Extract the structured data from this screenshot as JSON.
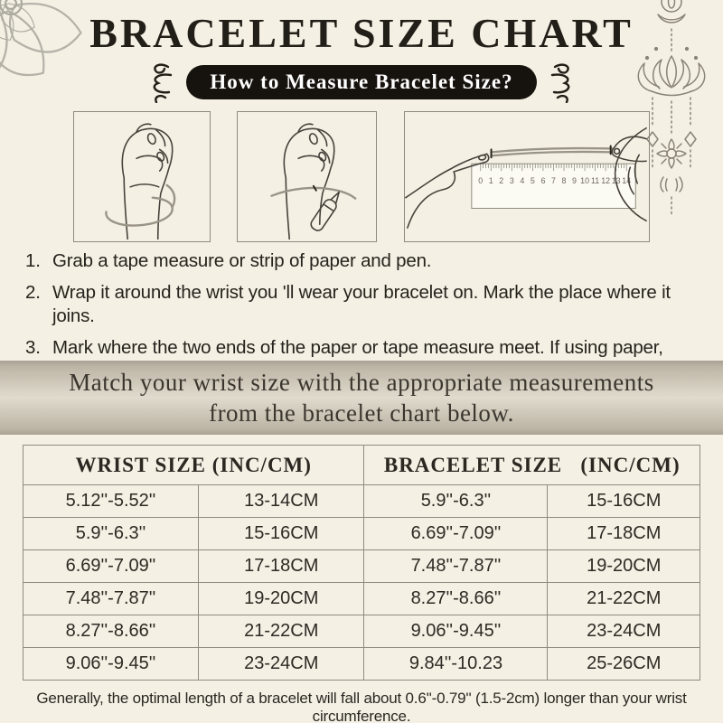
{
  "page": {
    "title": "BRACELET SIZE CHART",
    "badge": "How to Measure Bracelet Size?",
    "banner_line1": "Match your wrist size with the appropriate measurements",
    "banner_line2": "from the bracelet chart below.",
    "footer": "Generally, the optimal length of a bracelet will fall about 0.6''-0.79'' (1.5-2cm) longer than your wrist circumference."
  },
  "steps": [
    {
      "num": "1.",
      "text": "Grab a tape measure or strip of paper and pen."
    },
    {
      "num": "2.",
      "text": "Wrap it around the wrist you 'll wear your bracelet on. Mark the place where it joins."
    },
    {
      "num": "3.",
      "text": "Mark where the two ends of the paper or tape measure meet. If using paper, measure the length of the strip with a ruler. This would be your wrist size."
    }
  ],
  "illustrations": [
    {
      "name": "wrap-tape-around-wrist"
    },
    {
      "name": "mark-wrist-with-pen"
    },
    {
      "name": "measure-strip-with-ruler",
      "ruler_numbers": [
        "0",
        "1",
        "2",
        "3",
        "4",
        "5",
        "6",
        "7",
        "8",
        "9",
        "10",
        "11",
        "12",
        "13",
        "14"
      ]
    }
  ],
  "size_table": {
    "headers": [
      "WRIST SIZE (INC/CM)",
      "BRACELET SIZE   (INC/CM)"
    ],
    "rows": [
      [
        "5.12''-5.52''",
        "13-14CM",
        "5.9''-6.3''",
        "15-16CM"
      ],
      [
        "5.9''-6.3''",
        "15-16CM",
        "6.69''-7.09''",
        "17-18CM"
      ],
      [
        "6.69''-7.09''",
        "17-18CM",
        "7.48''-7.87''",
        "19-20CM"
      ],
      [
        "7.48''-7.87''",
        "19-20CM",
        "8.27''-8.66''",
        "21-22CM"
      ],
      [
        "8.27''-8.66''",
        "21-22CM",
        "9.06''-9.45''",
        "23-24CM"
      ],
      [
        "9.06''-9.45''",
        "23-24CM",
        "9.84''-10.23",
        "25-26CM"
      ]
    ]
  },
  "decorations": {
    "top_left": "mandala-flower",
    "top_right": "lotus-hanging-ornament",
    "badge_side": "curly-flourish"
  },
  "colors": {
    "background": "#f4f0e4",
    "ink": "#1d1915",
    "badge_bg": "#16120d",
    "badge_text": "#ffffff",
    "banner_top": "#a9a294",
    "banner_mid": "#e0dbcd",
    "table_border": "#8f8b7e"
  }
}
